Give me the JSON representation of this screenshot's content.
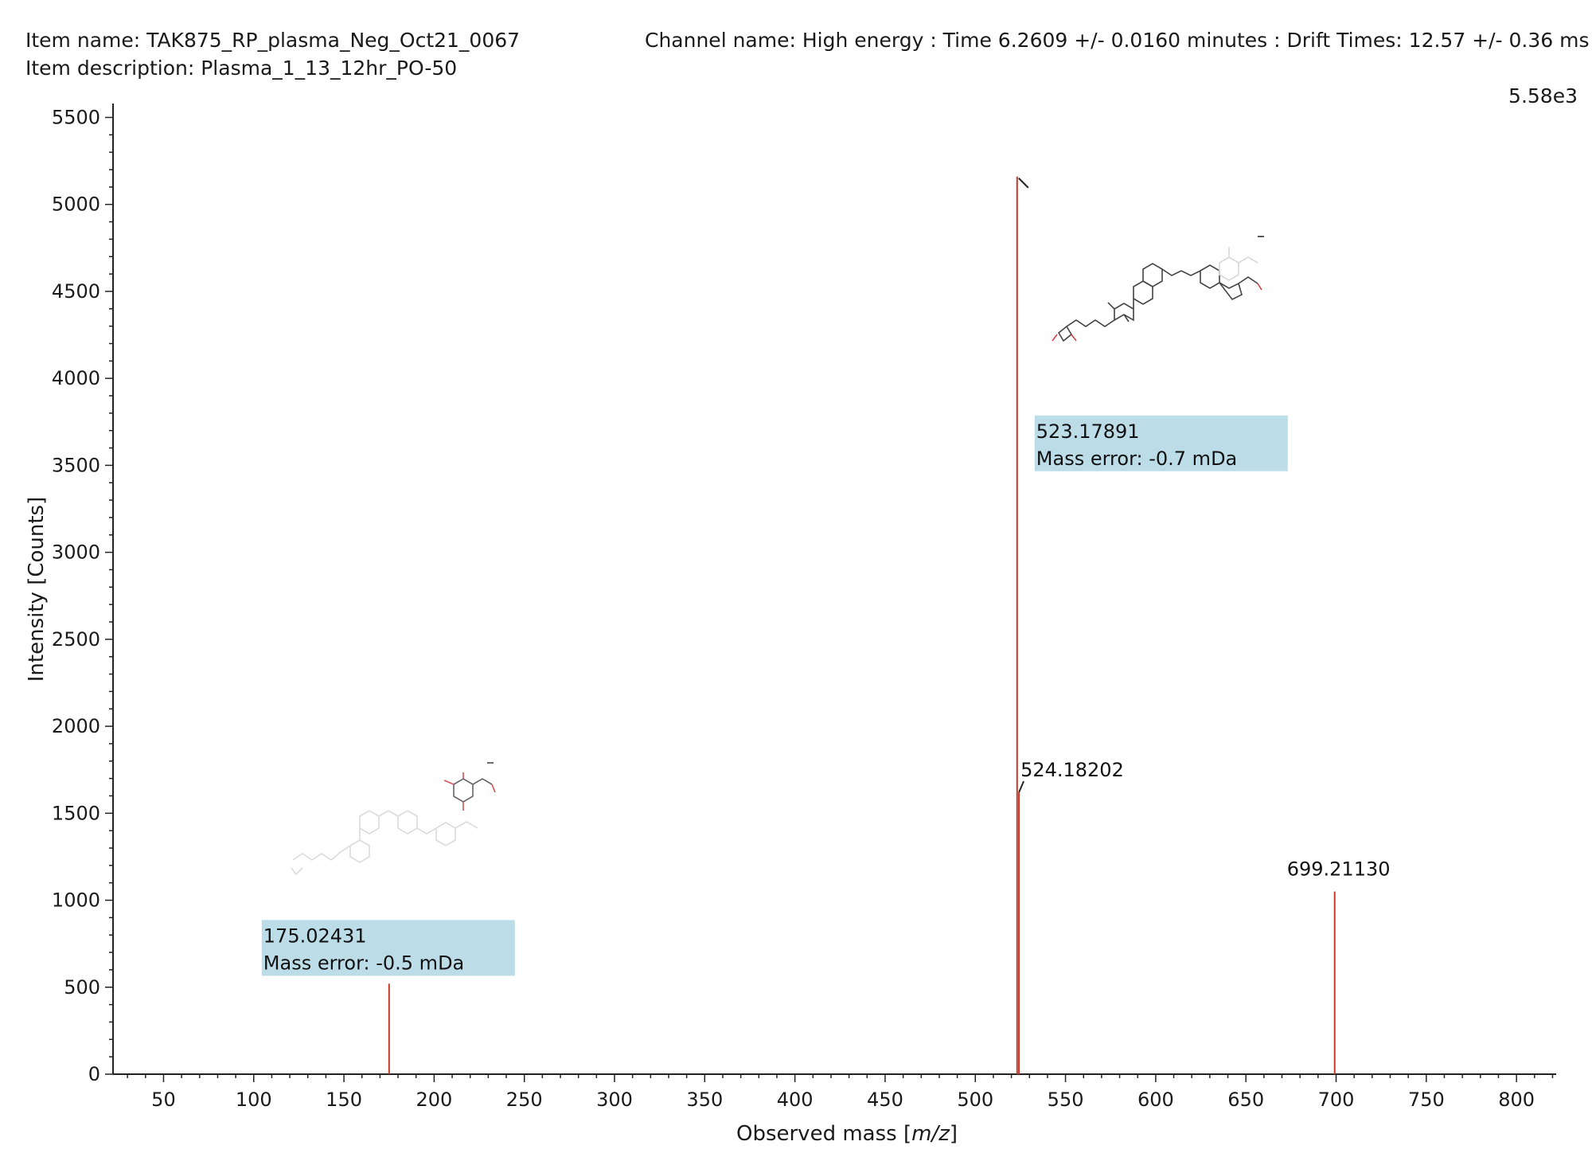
{
  "header": {
    "item_name": "Item name: TAK875_RP_plasma_Neg_Oct21_0067",
    "item_description": "Item description: Plasma_1_13_12hr_PO-50",
    "channel": "Channel name: High energy : Time 6.2609 +/- 0.0160 minutes : Drift Times: 12.57 +/- 0.36 ms",
    "scale_max": "5.58e3"
  },
  "chart_data": {
    "type": "bar",
    "xlabel_prefix": "Observed mass [",
    "xlabel_italic": "m/z",
    "xlabel_suffix": "]",
    "ylabel": "Intensity [Counts]",
    "xlim": [
      22,
      822
    ],
    "ylim": [
      0,
      5580
    ],
    "x_ticks": [
      50,
      100,
      150,
      200,
      250,
      300,
      350,
      400,
      450,
      500,
      550,
      600,
      650,
      700,
      750,
      800
    ],
    "y_ticks": [
      0,
      500,
      1000,
      1500,
      2000,
      2500,
      3000,
      3500,
      4000,
      4500,
      5000,
      5500
    ],
    "line_color": "#c0392b",
    "annotation_fill": "#bcdce8",
    "peaks": [
      {
        "mz": 175.02431,
        "intensity": 520,
        "label": "175.02431",
        "note": "Mass error: -0.5 mDa",
        "highlight": true
      },
      {
        "mz": 523.17891,
        "intensity": 5160,
        "label": "523.17891",
        "note": "Mass error: -0.7 mDa",
        "highlight": true
      },
      {
        "mz": 524.18202,
        "intensity": 1620,
        "label": "524.18202",
        "note": "",
        "highlight": false
      },
      {
        "mz": 699.2113,
        "intensity": 1050,
        "label": "699.21130",
        "note": "",
        "highlight": false
      }
    ]
  }
}
